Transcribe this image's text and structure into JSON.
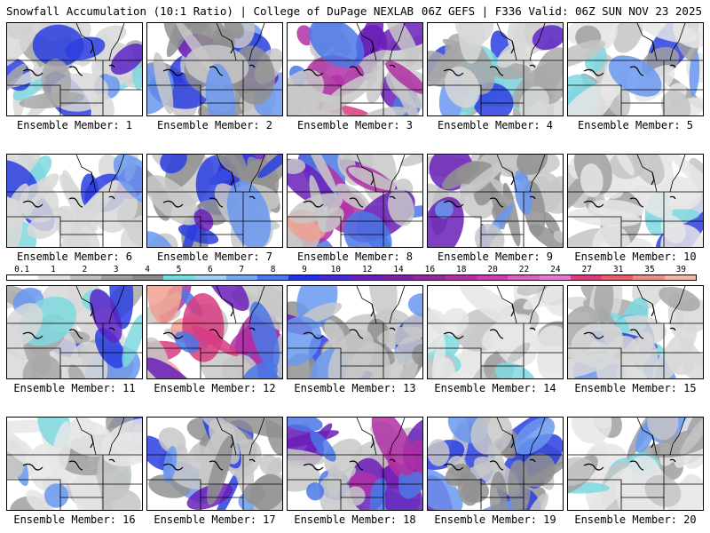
{
  "header": {
    "title_left": "Snowfall Accumulation (10:1 Ratio) | College of DuPage NEXLAB",
    "title_right": "06Z GEFS | F336 Valid: 06Z SUN NOV 23 2025"
  },
  "colorbar": {
    "ticks": [
      "0.1",
      "1",
      "2",
      "3",
      "4",
      "5",
      "6",
      "7",
      "8",
      "9",
      "10",
      "12",
      "14",
      "16",
      "18",
      "20",
      "22",
      "24",
      "27",
      "31",
      "35",
      "39"
    ],
    "colors": [
      "#ffffff",
      "#e0e0e0",
      "#c0c0c0",
      "#a0a0a0",
      "#8a8a8a",
      "#70dede",
      "#a6cff5",
      "#78a8f0",
      "#4a78e6",
      "#2232e0",
      "#4a2ad0",
      "#6a1fb8",
      "#7e20a8",
      "#92289c",
      "#b030a4",
      "#c840b0",
      "#d860c0",
      "#e67ad0",
      "#d83c80",
      "#e06070",
      "#e89088",
      "#f0b8a8"
    ]
  },
  "panels": [
    {
      "label": "Ensemble Member: 1",
      "style": "blue"
    },
    {
      "label": "Ensemble Member: 2",
      "style": "purple"
    },
    {
      "label": "Ensemble Member: 3",
      "style": "hot"
    },
    {
      "label": "Ensemble Member: 4",
      "style": "blue"
    },
    {
      "label": "Ensemble Member: 5",
      "style": "grey"
    },
    {
      "label": "Ensemble Member: 6",
      "style": "blue"
    },
    {
      "label": "Ensemble Member: 7",
      "style": "purple"
    },
    {
      "label": "Ensemble Member: 8",
      "style": "hot"
    },
    {
      "label": "Ensemble Member: 9",
      "style": "purple"
    },
    {
      "label": "Ensemble Member: 10",
      "style": "grey"
    },
    {
      "label": "Ensemble Member: 11",
      "style": "blue"
    },
    {
      "label": "Ensemble Member: 12",
      "style": "hot"
    },
    {
      "label": "Ensemble Member: 13",
      "style": "purple"
    },
    {
      "label": "Ensemble Member: 14",
      "style": "grey"
    },
    {
      "label": "Ensemble Member: 15",
      "style": "blue"
    },
    {
      "label": "Ensemble Member: 16",
      "style": "grey"
    },
    {
      "label": "Ensemble Member: 17",
      "style": "purple"
    },
    {
      "label": "Ensemble Member: 18",
      "style": "hot"
    },
    {
      "label": "Ensemble Member: 19",
      "style": "purple"
    },
    {
      "label": "Ensemble Member: 20",
      "style": "grey"
    }
  ]
}
